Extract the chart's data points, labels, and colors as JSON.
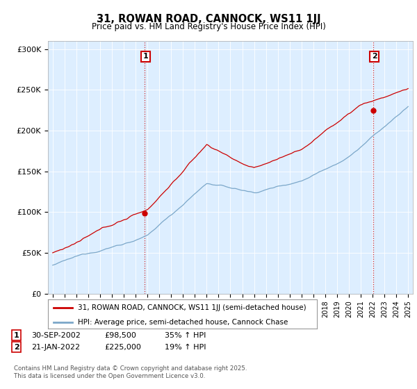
{
  "title": "31, ROWAN ROAD, CANNOCK, WS11 1JJ",
  "subtitle": "Price paid vs. HM Land Registry's House Price Index (HPI)",
  "legend_line1": "31, ROWAN ROAD, CANNOCK, WS11 1JJ (semi-detached house)",
  "legend_line2": "HPI: Average price, semi-detached house, Cannock Chase",
  "footnote": "Contains HM Land Registry data © Crown copyright and database right 2025.\nThis data is licensed under the Open Government Licence v3.0.",
  "annotation1_label": "1",
  "annotation1_date": "30-SEP-2002",
  "annotation1_price": "£98,500",
  "annotation1_hpi": "35% ↑ HPI",
  "annotation2_label": "2",
  "annotation2_date": "21-JAN-2022",
  "annotation2_price": "£225,000",
  "annotation2_hpi": "19% ↑ HPI",
  "red_color": "#cc0000",
  "blue_color": "#7ba7c9",
  "bg_fill_color": "#ddeeff",
  "ylim": [
    0,
    310000
  ],
  "ytick_values": [
    0,
    50000,
    100000,
    150000,
    200000,
    250000,
    300000
  ],
  "ytick_labels": [
    "£0",
    "£50K",
    "£100K",
    "£150K",
    "£200K",
    "£250K",
    "£300K"
  ],
  "year_start": 1995,
  "year_end": 2025,
  "purchase1_year": 2002.75,
  "purchase1_value": 98500,
  "purchase2_year": 2022.05,
  "purchase2_value": 225000
}
